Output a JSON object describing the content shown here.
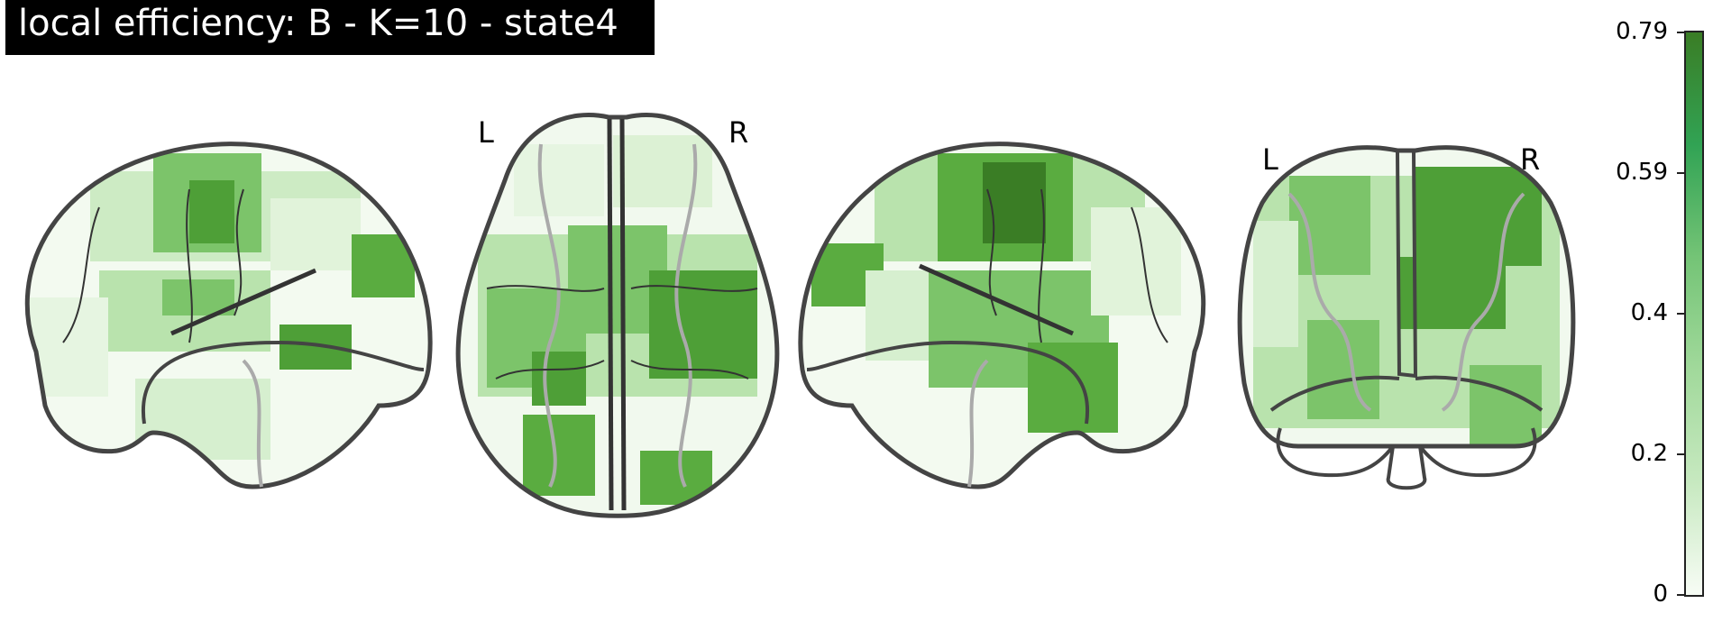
{
  "title": "local efficiency: B - K=10 - state4",
  "views": {
    "axial": {
      "left_label": "L",
      "right_label": "R"
    },
    "coronal": {
      "left_label": "L",
      "right_label": "R"
    }
  },
  "colorbar": {
    "ticks": [
      "0.79",
      "0.59",
      "0.4",
      "0.2",
      "0"
    ],
    "colors": [
      "#f7fcf5",
      "#c7e9c0",
      "#a1d99b",
      "#74c476",
      "#31a354",
      "#3a7d25"
    ]
  }
}
